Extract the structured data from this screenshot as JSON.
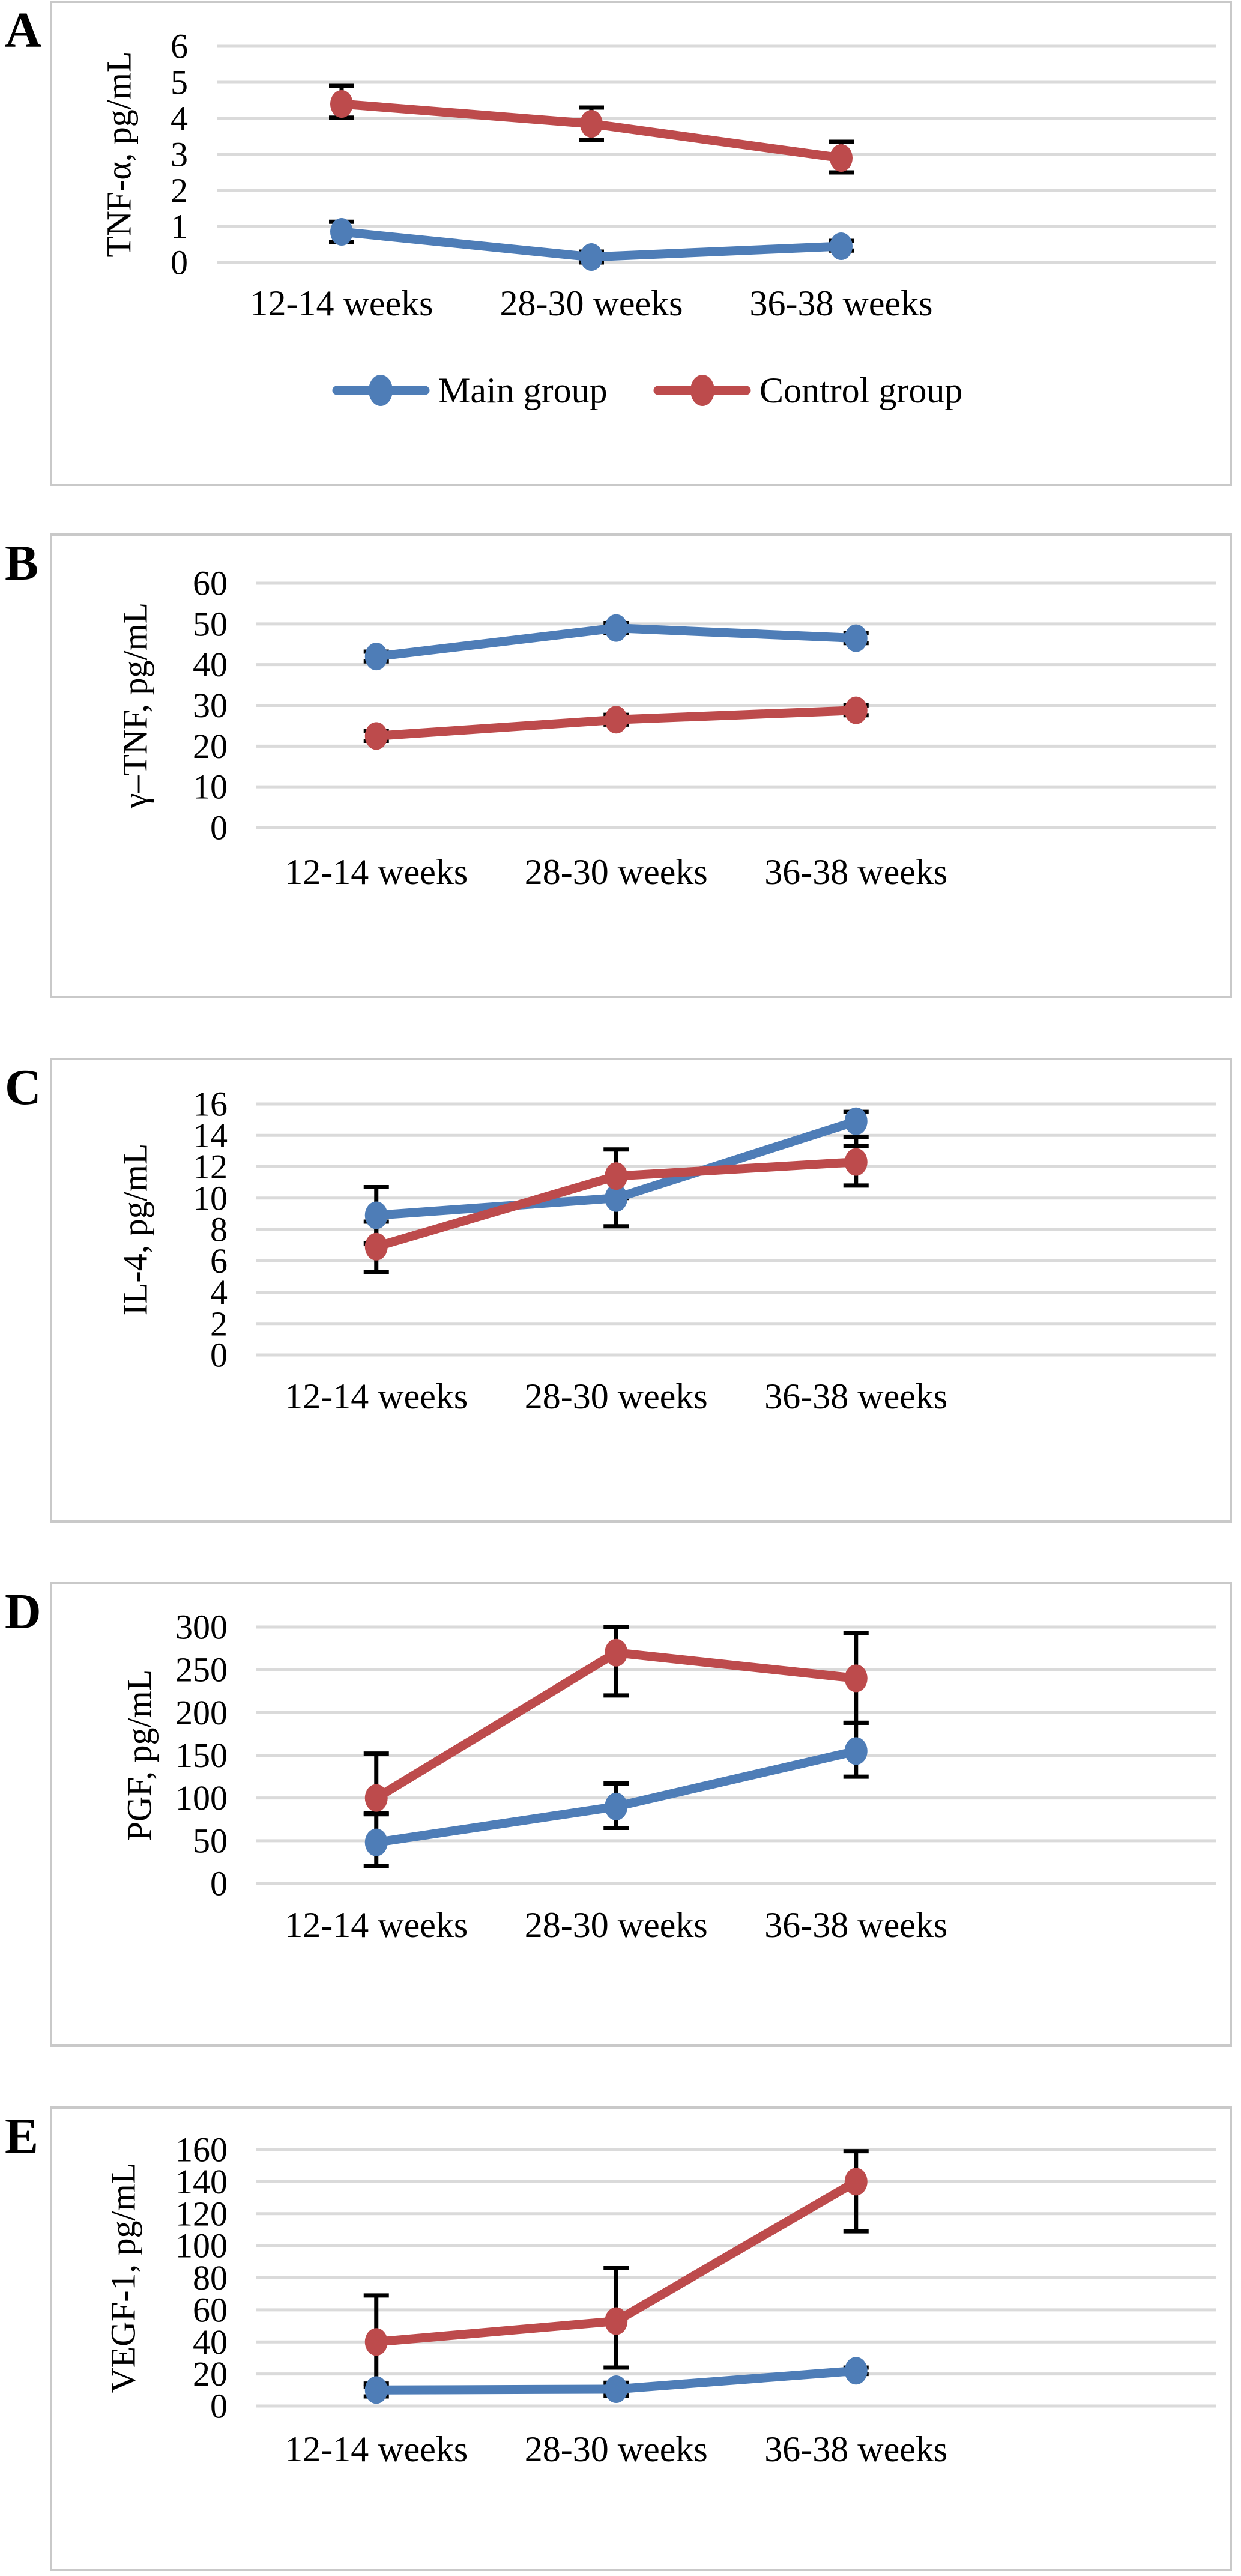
{
  "figure": {
    "description": "Five-panel line chart figure comparing cytokine and growth factor serum levels across gestation",
    "categories": [
      "12-14 weeks",
      "28-30 weeks",
      "36-38 weeks"
    ],
    "legend": {
      "items": [
        "Main group",
        "Control group"
      ]
    },
    "colors": {
      "main_group": "#4E7DB7",
      "control_group": "#BD4B4C",
      "gridline": "#DADADA",
      "panel_border": "#C9C9C9",
      "error_bar": "#000000"
    }
  },
  "chart_data": [
    {
      "panel_label": "A",
      "type": "line",
      "ylabel": "TNF-α, pg/mL",
      "xlabel": "",
      "ylim": [
        0,
        6
      ],
      "yticks": [
        "6",
        "5",
        "4",
        "3",
        "2",
        "1",
        "0"
      ],
      "grid": true,
      "legend_position": "bottom",
      "show_legend": true,
      "categories": [
        "12-14 weeks",
        "28-30 weeks",
        "36-38 weeks"
      ],
      "series": [
        {
          "name": "Main group",
          "color": "#4E7DB7",
          "values": [
            0.85,
            0.15,
            0.45
          ],
          "err_minus": [
            0.28,
            0.15,
            0.12
          ],
          "err_plus": [
            0.28,
            0.15,
            0.15
          ]
        },
        {
          "name": "Control group",
          "color": "#BD4B4C",
          "values": [
            4.4,
            3.85,
            2.9
          ],
          "err_minus": [
            0.38,
            0.45,
            0.4
          ],
          "err_plus": [
            0.5,
            0.45,
            0.45
          ]
        }
      ]
    },
    {
      "panel_label": "B",
      "type": "line",
      "ylabel": "γ–TNF, pg/mL",
      "xlabel": "",
      "ylim": [
        0,
        60
      ],
      "yticks": [
        "60",
        "50",
        "40",
        "30",
        "20",
        "10",
        "0"
      ],
      "grid": true,
      "show_legend": false,
      "categories": [
        "12-14 weeks",
        "28-30 weeks",
        "36-38 weeks"
      ],
      "series": [
        {
          "name": "Main group",
          "color": "#4E7DB7",
          "values": [
            42,
            49,
            46.5
          ],
          "err_minus": [
            1.2,
            1.2,
            1.2
          ],
          "err_plus": [
            1.2,
            1.2,
            1.2
          ]
        },
        {
          "name": "Control group",
          "color": "#BD4B4C",
          "values": [
            22.5,
            26.5,
            28.8
          ],
          "err_minus": [
            1.2,
            1.2,
            1.2
          ],
          "err_plus": [
            1.2,
            1.2,
            1.2
          ]
        }
      ]
    },
    {
      "panel_label": "C",
      "type": "line",
      "ylabel": "IL-4, pg/mL",
      "xlabel": "",
      "ylim": [
        0,
        16
      ],
      "yticks": [
        "16",
        "14",
        "12",
        "10",
        "8",
        "6",
        "4",
        "2",
        "0"
      ],
      "grid": true,
      "show_legend": false,
      "categories": [
        "12-14 weeks",
        "28-30 weeks",
        "36-38 weeks"
      ],
      "series": [
        {
          "name": "Main group",
          "color": "#4E7DB7",
          "values": [
            8.9,
            10.0,
            14.9
          ],
          "err_minus": [
            1.8,
            1.8,
            1.6
          ],
          "err_plus": [
            1.8,
            1.3,
            0.6
          ]
        },
        {
          "name": "Control group",
          "color": "#BD4B4C",
          "values": [
            6.9,
            11.4,
            12.3
          ],
          "err_minus": [
            1.6,
            1.4,
            1.5
          ],
          "err_plus": [
            1.6,
            1.7,
            1.6
          ]
        }
      ]
    },
    {
      "panel_label": "D",
      "type": "line",
      "ylabel": "PGF, pg/mL",
      "xlabel": "",
      "ylim": [
        0,
        300
      ],
      "yticks": [
        "300",
        "250",
        "200",
        "150",
        "100",
        "50",
        "0"
      ],
      "grid": true,
      "show_legend": false,
      "categories": [
        "12-14 weeks",
        "28-30 weeks",
        "36-38 weeks"
      ],
      "series": [
        {
          "name": "Main group",
          "color": "#4E7DB7",
          "values": [
            48,
            90,
            155
          ],
          "err_minus": [
            28,
            25,
            30
          ],
          "err_plus": [
            33,
            27,
            33
          ]
        },
        {
          "name": "Control group",
          "color": "#BD4B4C",
          "values": [
            100,
            270,
            240
          ],
          "err_minus": [
            18,
            50,
            52
          ],
          "err_plus": [
            52,
            30,
            53
          ]
        }
      ]
    },
    {
      "panel_label": "E",
      "type": "line",
      "ylabel": "VEGF-1, pg/mL",
      "xlabel": "",
      "ylim": [
        0,
        160
      ],
      "yticks": [
        "160",
        "140",
        "120",
        "100",
        "80",
        "60",
        "40",
        "20",
        "0"
      ],
      "grid": true,
      "show_legend": false,
      "categories": [
        "12-14 weeks",
        "28-30 weeks",
        "36-38 weeks"
      ],
      "series": [
        {
          "name": "Main group",
          "color": "#4E7DB7",
          "values": [
            10,
            10.5,
            22
          ],
          "err_minus": [
            4,
            4,
            2
          ],
          "err_plus": [
            4,
            4,
            2
          ]
        },
        {
          "name": "Control group",
          "color": "#BD4B4C",
          "values": [
            40,
            53,
            140
          ],
          "err_minus": [
            28,
            29,
            31
          ],
          "err_plus": [
            29,
            33,
            19
          ]
        }
      ]
    }
  ]
}
